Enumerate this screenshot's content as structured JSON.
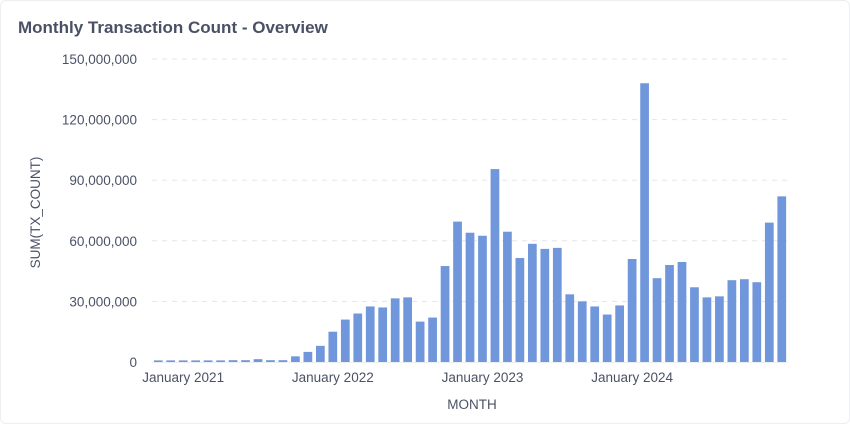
{
  "card": {
    "title": "Monthly Transaction Count - Overview"
  },
  "chart_data": {
    "type": "bar",
    "title": "Monthly Transaction Count - Overview",
    "xlabel": "MONTH",
    "ylabel": "SUM(TX_COUNT)",
    "ylim": [
      0,
      150000000
    ],
    "yticks": [
      0,
      30000000,
      60000000,
      90000000,
      120000000,
      150000000
    ],
    "ytick_labels": [
      "0",
      "30,000,000",
      "60,000,000",
      "90,000,000",
      "120,000,000",
      "150,000,000"
    ],
    "xtick_labels": [
      "January 2021",
      "January 2022",
      "January 2023",
      "January 2024"
    ],
    "xtick_months": [
      "2021-01",
      "2022-01",
      "2023-01",
      "2024-01"
    ],
    "grid": true,
    "bar_color": "#7097db",
    "categories": [
      "2020-11",
      "2020-12",
      "2021-01",
      "2021-02",
      "2021-03",
      "2021-04",
      "2021-05",
      "2021-06",
      "2021-07",
      "2021-08",
      "2021-09",
      "2021-10",
      "2021-11",
      "2021-12",
      "2022-01",
      "2022-02",
      "2022-03",
      "2022-04",
      "2022-05",
      "2022-06",
      "2022-07",
      "2022-08",
      "2022-09",
      "2022-10",
      "2022-11",
      "2022-12",
      "2023-01",
      "2023-02",
      "2023-03",
      "2023-04",
      "2023-05",
      "2023-06",
      "2023-07",
      "2023-08",
      "2023-09",
      "2023-10",
      "2023-11",
      "2023-12",
      "2024-01",
      "2024-02",
      "2024-03",
      "2024-04",
      "2024-05",
      "2024-06",
      "2024-07",
      "2024-08",
      "2024-09",
      "2024-10",
      "2024-11",
      "2024-12",
      "2025-01"
    ],
    "values": [
      800000,
      800000,
      800000,
      800000,
      800000,
      800000,
      900000,
      900000,
      1400000,
      900000,
      900000,
      2800000,
      5000000,
      8000000,
      15000000,
      21000000,
      24000000,
      27500000,
      27000000,
      31500000,
      32000000,
      20000000,
      22000000,
      47500000,
      69500000,
      64000000,
      62500000,
      95500000,
      64500000,
      51500000,
      58500000,
      56000000,
      56500000,
      33500000,
      30000000,
      27500000,
      23500000,
      28000000,
      51000000,
      138000000,
      41500000,
      48000000,
      49500000,
      37000000,
      32000000,
      32500000,
      40500000,
      41000000,
      39500000,
      69000000,
      82000000
    ]
  }
}
